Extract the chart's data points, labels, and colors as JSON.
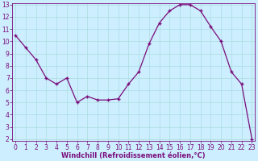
{
  "x": [
    0,
    1,
    2,
    3,
    4,
    5,
    6,
    7,
    8,
    9,
    10,
    11,
    12,
    13,
    14,
    15,
    16,
    17,
    18,
    19,
    20,
    21,
    22,
    23
  ],
  "y": [
    10.5,
    9.5,
    8.5,
    7.0,
    6.5,
    7.0,
    5.0,
    5.5,
    5.2,
    5.2,
    5.3,
    6.5,
    7.5,
    9.8,
    11.5,
    12.5,
    13.0,
    13.0,
    12.5,
    11.2,
    10.0,
    7.5,
    6.5,
    2.0
  ],
  "xlabel": "Windchill (Refroidissement éolien,°C)",
  "line_color": "#7B0D7B",
  "marker": "+",
  "bg_color": "#cceeff",
  "grid_color": "#aadddd",
  "label_color": "#7B0D7B",
  "ylim_min": 2,
  "ylim_max": 13,
  "xlim_min": 0,
  "xlim_max": 23,
  "yticks": [
    2,
    3,
    4,
    5,
    6,
    7,
    8,
    9,
    10,
    11,
    12,
    13
  ],
  "xticks": [
    0,
    1,
    2,
    3,
    4,
    5,
    6,
    7,
    8,
    9,
    10,
    11,
    12,
    13,
    14,
    15,
    16,
    17,
    18,
    19,
    20,
    21,
    22,
    23
  ],
  "tick_fontsize": 5.5,
  "xlabel_fontsize": 6.0,
  "marker_size": 3.5,
  "linewidth": 0.9
}
